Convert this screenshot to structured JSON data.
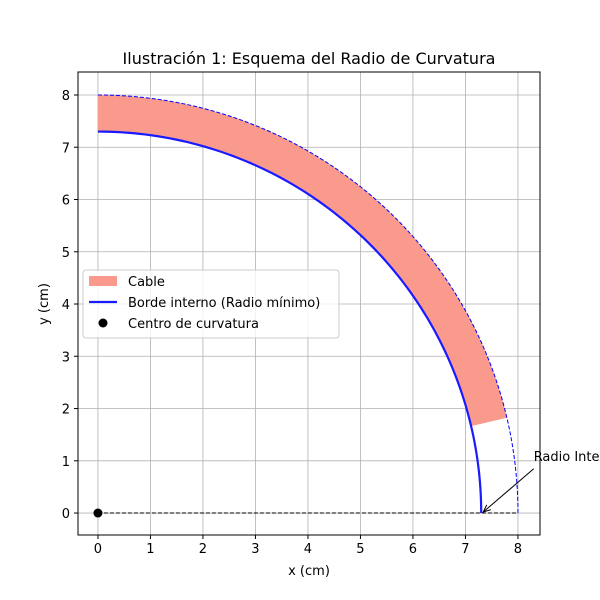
{
  "chart_data": {
    "type": "curvature",
    "title": "Ilustración 1: Esquema del Radio de Curvatura",
    "xlabel": "x (cm)",
    "ylabel": "y (cm)",
    "xlim": [
      -0.38,
      8.42
    ],
    "ylim": [
      -0.42,
      8.44
    ],
    "xticks": [
      0,
      1,
      2,
      3,
      4,
      5,
      6,
      7,
      8
    ],
    "yticks": [
      0,
      1,
      2,
      3,
      4,
      5,
      6,
      7,
      8
    ],
    "grid": true,
    "center": [
      0,
      0
    ],
    "inner_radius": 7.3,
    "outer_radius": 8.0,
    "series": [
      {
        "name": "Cable",
        "color": "#f99a8c"
      },
      {
        "name": "Borde interno (Radio mínimo)",
        "color": "#1a1aff"
      },
      {
        "name": "Centro de curvatura",
        "color": "#000000"
      }
    ],
    "legend": "center left",
    "annotation": {
      "text": "Radio Interno",
      "xy": [
        7.3,
        0
      ],
      "xytext": [
        8.3,
        1.0
      ]
    }
  }
}
